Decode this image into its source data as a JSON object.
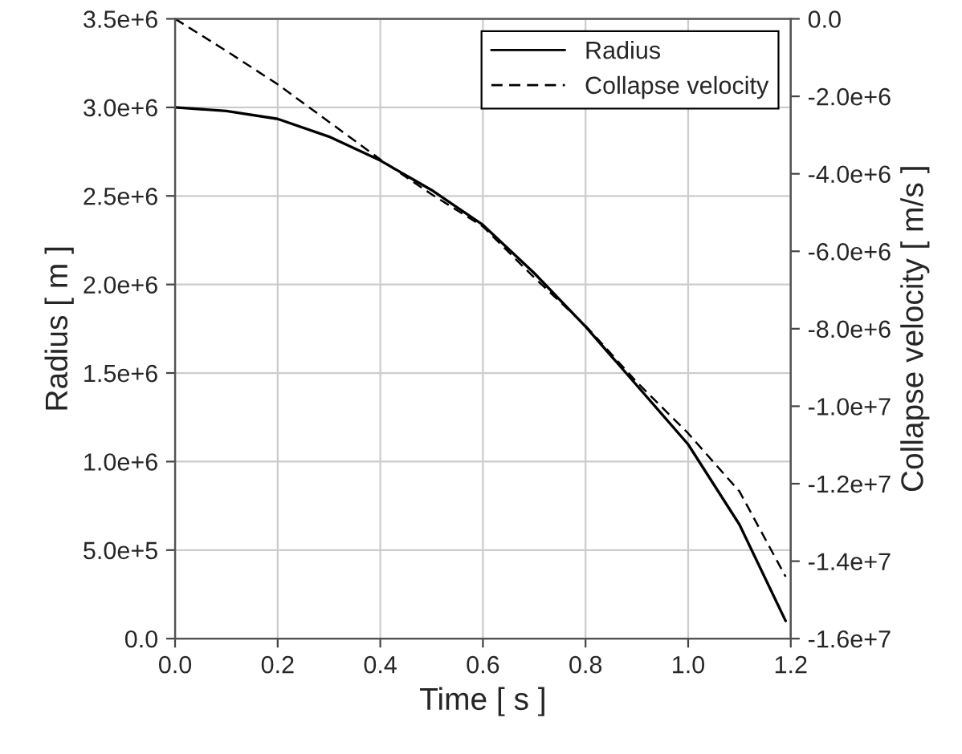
{
  "chart_data": {
    "type": "line",
    "xlabel": "Time [ s ]",
    "ylabel": "Radius [ m ]",
    "y2label": "Collapse velocity [ m/s ]",
    "xlim": [
      0,
      1.2
    ],
    "xticks": [
      {
        "value": 0,
        "label": "0.0"
      },
      0.2,
      0.4,
      0.6,
      0.8,
      {
        "value": 1,
        "label": "1.0"
      },
      1.2
    ],
    "ylim": [
      0,
      3500000
    ],
    "yticks": [
      {
        "value": 0,
        "label": "0.0"
      },
      {
        "value": 500000,
        "label": "5.0e+5"
      },
      {
        "value": 1000000,
        "label": "1.0e+6"
      },
      {
        "value": 1500000,
        "label": "1.5e+6"
      },
      {
        "value": 2000000,
        "label": "2.0e+6"
      },
      {
        "value": 2500000,
        "label": "2.5e+6"
      },
      {
        "value": 3000000,
        "label": "3.0e+6"
      },
      {
        "value": 3500000,
        "label": "3.5e+6"
      }
    ],
    "y2lim": [
      -16000000,
      0
    ],
    "y2ticks": [
      {
        "value": -16000000,
        "label": "-1.6e+7"
      },
      {
        "value": -14000000,
        "label": "-1.4e+7"
      },
      {
        "value": -12000000,
        "label": "-1.2e+7"
      },
      {
        "value": -10000000,
        "label": "-1.0e+7"
      },
      {
        "value": -8000000,
        "label": "-8.0e+6"
      },
      {
        "value": -6000000,
        "label": "-6.0e+6"
      },
      {
        "value": -4000000,
        "label": "-4.0e+6"
      },
      {
        "value": -2000000,
        "label": "-2.0e+6"
      },
      {
        "value": 0,
        "label": "0.0"
      }
    ],
    "grid": true,
    "legend": "top right",
    "series": [
      {
        "name": "Radius",
        "color": "#000000",
        "line_style": "solid",
        "x": [
          0,
          0.1,
          0.2,
          0.3,
          0.4,
          0.5,
          0.6,
          0.7,
          0.8,
          0.9,
          1.0,
          1.1,
          1.19
        ],
        "values": [
          3000000,
          2980000,
          2935000,
          2835000,
          2700000,
          2533000,
          2336000,
          2064000,
          1762000,
          1430000,
          1097000,
          644000,
          100000
        ]
      },
      {
        "name": "Collapse velocity",
        "color": "#000000",
        "line_style": "dashed",
        "axis": "y2",
        "x": [
          0,
          0.1,
          0.2,
          0.3,
          0.4,
          0.5,
          0.6,
          0.7,
          0.8,
          0.9,
          1.0,
          1.1,
          1.19
        ],
        "values": [
          0,
          -830000,
          -1690000,
          -2660000,
          -3630000,
          -4530000,
          -5360000,
          -6680000,
          -7920000,
          -9380000,
          -10700000,
          -12200000,
          -14400000
        ]
      }
    ]
  }
}
